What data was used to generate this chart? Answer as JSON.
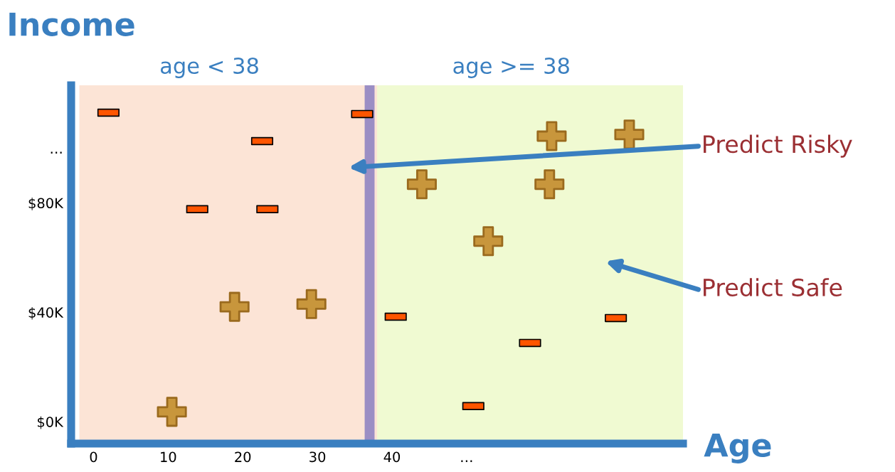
{
  "chart_data": {
    "type": "scatter",
    "xlabel": "Age",
    "ylabel": "Income",
    "xlim": [
      -3,
      79
    ],
    "ylim": [
      -8,
      123
    ],
    "xticks": [
      0,
      10,
      20,
      30,
      40,
      {
        "value": 50,
        "label": "…"
      }
    ],
    "yticks": [
      {
        "value": 0,
        "label": "$0K"
      },
      {
        "value": 40,
        "label": "$40K"
      },
      {
        "value": 80,
        "label": "$80K"
      },
      {
        "value": 100,
        "label": "…"
      }
    ],
    "grid": false,
    "series": [
      {
        "color": "#ff5500",
        "marker": "square",
        "x": [
          2,
          36,
          22.6,
          13.9,
          23.3,
          40.5,
          58.5,
          70,
          50.9
        ],
        "values": [
          113,
          112.5,
          102.6,
          77.7,
          77.7,
          38.4,
          28.8,
          37.9,
          5.7
        ]
      },
      {
        "color": "#c8963c",
        "marker": "cross",
        "x": [
          61.4,
          71.8,
          44,
          61.1,
          52.9,
          18.9,
          29.2,
          10.5
        ],
        "values": [
          104.4,
          105,
          86.8,
          86.8,
          66,
          42,
          43,
          3.6
        ]
      }
    ],
    "bands": [
      {
        "axis": "x",
        "from": -1.9,
        "to": 38,
        "label": "age < 38",
        "color": "#fce4d6"
      },
      {
        "axis": "x",
        "from": 38,
        "to": 79,
        "label": "age >= 38",
        "color": "#f0fad2"
      }
    ],
    "ref_lines": [
      {
        "axis": "x",
        "value": 37,
        "color": "#9b8ec4"
      }
    ],
    "annotations": [
      "Predict Risky",
      "Predict Safe"
    ]
  }
}
